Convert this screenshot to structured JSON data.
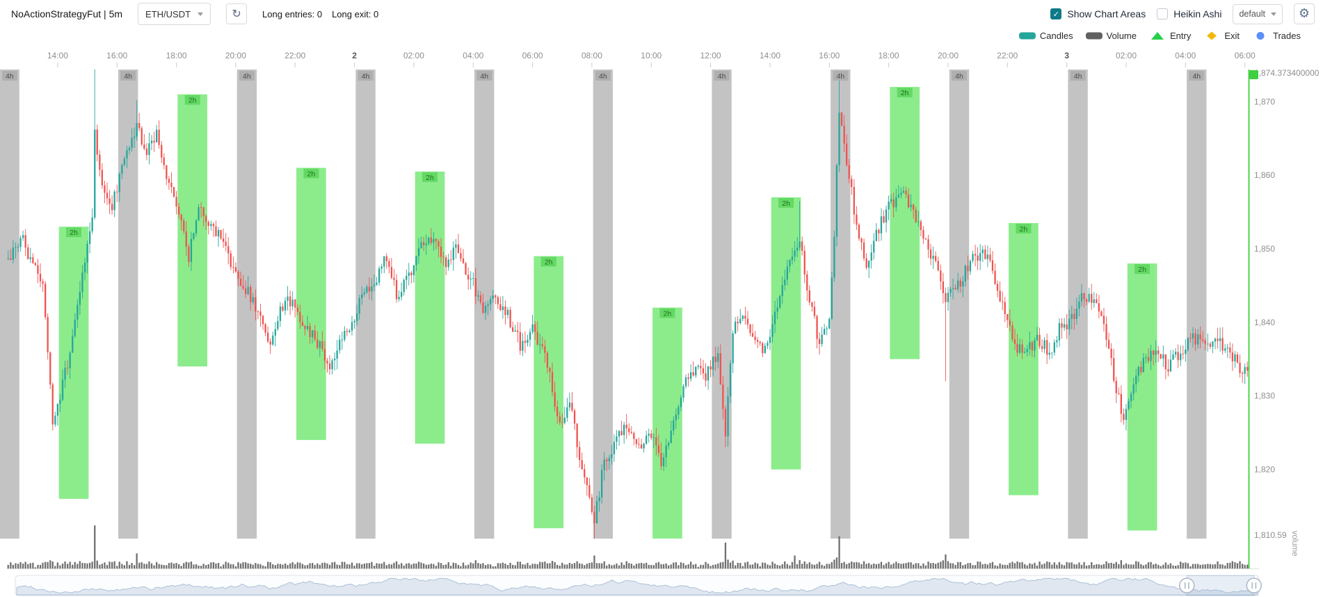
{
  "header": {
    "title": "NoActionStrategyFut | 5m",
    "pair_select": {
      "value": "ETH/USDT"
    },
    "long_entries_label": "Long entries: 0",
    "long_exit_label": "Long exit: 0",
    "show_chart_areas": {
      "label": "Show Chart Areas",
      "checked": true
    },
    "heikin_ashi": {
      "label": "Heikin Ashi",
      "checked": false
    },
    "theme_select": {
      "value": "default"
    }
  },
  "legend": {
    "items": [
      {
        "id": "candles",
        "label": "Candles",
        "marker": "pill",
        "color": "#26a69a"
      },
      {
        "id": "volume",
        "label": "Volume",
        "marker": "pill",
        "color": "#616161"
      },
      {
        "id": "entry",
        "label": "Entry",
        "marker": "triangle",
        "color": "#27d04c"
      },
      {
        "id": "exit",
        "label": "Exit",
        "marker": "diamond",
        "color": "#f0b90b"
      },
      {
        "id": "trades",
        "label": "Trades",
        "marker": "circle",
        "color": "#5b8ff9"
      }
    ]
  },
  "colors": {
    "up": "#26a69a",
    "down": "#ef5350",
    "volume_bar": "#6f6f6f",
    "area_4h": "#c3c3c3",
    "area_4h_badge": "#afafaf",
    "area_4h_text": "#4a4a4a",
    "area_2h": "#8cec8c",
    "area_2h_badge": "#63d963",
    "area_2h_text": "#1e6e1e",
    "axis_text": "#8e8e8e",
    "axis_day_text": "#555555",
    "last_price_line": "#3fcf3f"
  },
  "chart_data": {
    "type": "candlestick",
    "pair": "ETH/USDT",
    "timeframe": "5m",
    "candle_count": 502,
    "price_axis": {
      "max": 1874.3734,
      "min": 1810.59,
      "tick_prices": [
        1874.3734,
        1870,
        1860,
        1850,
        1840,
        1830,
        1820,
        1810.59
      ],
      "tick_labels": [
        "1,874.373400000",
        "1,870",
        "1,860",
        "1,850",
        "1,840",
        "1,830",
        "1,820",
        "1,810.59"
      ]
    },
    "time_axis": {
      "ticks": [
        {
          "label": "14:00",
          "index": 20
        },
        {
          "label": "16:00",
          "index": 44
        },
        {
          "label": "18:00",
          "index": 68
        },
        {
          "label": "20:00",
          "index": 92
        },
        {
          "label": "22:00",
          "index": 116
        },
        {
          "label": "2",
          "index": 140,
          "day": true
        },
        {
          "label": "02:00",
          "index": 164
        },
        {
          "label": "04:00",
          "index": 188
        },
        {
          "label": "06:00",
          "index": 212
        },
        {
          "label": "08:00",
          "index": 236
        },
        {
          "label": "10:00",
          "index": 260
        },
        {
          "label": "12:00",
          "index": 284
        },
        {
          "label": "14:00",
          "index": 308
        },
        {
          "label": "16:00",
          "index": 332
        },
        {
          "label": "18:00",
          "index": 356
        },
        {
          "label": "20:00",
          "index": 380
        },
        {
          "label": "22:00",
          "index": 404
        },
        {
          "label": "3",
          "index": 428,
          "day": true
        },
        {
          "label": "02:00",
          "index": 452
        },
        {
          "label": "04:00",
          "index": 476
        },
        {
          "label": "06:00",
          "index": 500
        }
      ]
    },
    "close_anchors": [
      [
        1,
        1849
      ],
      [
        6,
        1851
      ],
      [
        14,
        1845
      ],
      [
        18,
        1826
      ],
      [
        25,
        1836
      ],
      [
        30,
        1846
      ],
      [
        34,
        1854
      ],
      [
        35,
        1866
      ],
      [
        38,
        1859
      ],
      [
        42,
        1856
      ],
      [
        47,
        1862
      ],
      [
        52,
        1867
      ],
      [
        56,
        1863
      ],
      [
        60,
        1866
      ],
      [
        64,
        1860
      ],
      [
        69,
        1855
      ],
      [
        73,
        1849
      ],
      [
        77,
        1856
      ],
      [
        82,
        1853
      ],
      [
        87,
        1851
      ],
      [
        92,
        1846
      ],
      [
        97,
        1844
      ],
      [
        101,
        1841
      ],
      [
        106,
        1837
      ],
      [
        110,
        1842
      ],
      [
        115,
        1843
      ],
      [
        119,
        1840
      ],
      [
        124,
        1838
      ],
      [
        130,
        1834
      ],
      [
        134,
        1837
      ],
      [
        139,
        1840
      ],
      [
        144,
        1844
      ],
      [
        149,
        1846
      ],
      [
        153,
        1849
      ],
      [
        157,
        1844
      ],
      [
        162,
        1846
      ],
      [
        167,
        1850
      ],
      [
        172,
        1851
      ],
      [
        176,
        1848
      ],
      [
        181,
        1850
      ],
      [
        187,
        1846
      ],
      [
        192,
        1842
      ],
      [
        197,
        1843
      ],
      [
        202,
        1841
      ],
      [
        207,
        1837
      ],
      [
        212,
        1839
      ],
      [
        217,
        1836
      ],
      [
        221,
        1829
      ],
      [
        223,
        1826
      ],
      [
        227,
        1829
      ],
      [
        231,
        1822
      ],
      [
        234,
        1817
      ],
      [
        237,
        1813
      ],
      [
        241,
        1821
      ],
      [
        246,
        1824
      ],
      [
        250,
        1826
      ],
      [
        255,
        1823
      ],
      [
        259,
        1825
      ],
      [
        264,
        1821
      ],
      [
        269,
        1826
      ],
      [
        273,
        1831
      ],
      [
        278,
        1834
      ],
      [
        282,
        1833
      ],
      [
        287,
        1836
      ],
      [
        290,
        1825
      ],
      [
        293,
        1839
      ],
      [
        297,
        1841
      ],
      [
        302,
        1838
      ],
      [
        306,
        1836
      ],
      [
        311,
        1842
      ],
      [
        315,
        1847
      ],
      [
        320,
        1851
      ],
      [
        324,
        1843
      ],
      [
        328,
        1837
      ],
      [
        332,
        1840
      ],
      [
        334,
        1852
      ],
      [
        336,
        1869
      ],
      [
        339,
        1862
      ],
      [
        343,
        1853
      ],
      [
        347,
        1847
      ],
      [
        351,
        1852
      ],
      [
        356,
        1856
      ],
      [
        362,
        1857
      ],
      [
        366,
        1855
      ],
      [
        371,
        1851
      ],
      [
        375,
        1848
      ],
      [
        379,
        1843
      ],
      [
        384,
        1845
      ],
      [
        389,
        1848
      ],
      [
        394,
        1850
      ],
      [
        398,
        1847
      ],
      [
        403,
        1841
      ],
      [
        407,
        1837
      ],
      [
        412,
        1836
      ],
      [
        416,
        1838
      ],
      [
        421,
        1836
      ],
      [
        425,
        1839
      ],
      [
        431,
        1841
      ],
      [
        435,
        1844
      ],
      [
        440,
        1842
      ],
      [
        444,
        1838
      ],
      [
        448,
        1831
      ],
      [
        451,
        1827
      ],
      [
        455,
        1832
      ],
      [
        460,
        1835
      ],
      [
        465,
        1836
      ],
      [
        469,
        1834
      ],
      [
        474,
        1836
      ],
      [
        478,
        1838
      ],
      [
        483,
        1837
      ],
      [
        488,
        1838
      ],
      [
        494,
        1836
      ],
      [
        498,
        1834
      ],
      [
        501,
        1833
      ]
    ],
    "wick_overrides": [
      {
        "i": 35,
        "high": 1874.3734
      },
      {
        "i": 52,
        "high": 1870.2
      },
      {
        "i": 237,
        "low": 1810.59
      },
      {
        "i": 290,
        "low": 1823
      },
      {
        "i": 320,
        "high": 1856.5
      },
      {
        "i": 336,
        "high": 1873.2
      },
      {
        "i": 379,
        "low": 1832
      }
    ],
    "volume_spikes": [
      {
        "i": 35,
        "v": 1.0
      },
      {
        "i": 52,
        "v": 0.35
      },
      {
        "i": 237,
        "v": 0.3
      },
      {
        "i": 290,
        "v": 0.6
      },
      {
        "i": 318,
        "v": 0.3
      },
      {
        "i": 336,
        "v": 0.75
      }
    ],
    "areas_4h": {
      "label": "4h",
      "starts": [
        -3,
        45,
        93,
        141,
        189,
        237,
        285,
        333,
        381,
        429,
        477
      ],
      "width": 8
    },
    "areas_2h": {
      "label": "2h",
      "boxes": [
        {
          "start": 21,
          "end": 33,
          "low": 1816,
          "high": 1853
        },
        {
          "start": 69,
          "end": 81,
          "low": 1834,
          "high": 1871
        },
        {
          "start": 117,
          "end": 129,
          "low": 1824,
          "high": 1861
        },
        {
          "start": 165,
          "end": 177,
          "low": 1823.5,
          "high": 1860.5
        },
        {
          "start": 213,
          "end": 225,
          "low": 1812,
          "high": 1849
        },
        {
          "start": 261,
          "end": 273,
          "low": 1810.6,
          "high": 1842
        },
        {
          "start": 309,
          "end": 321,
          "low": 1820,
          "high": 1857
        },
        {
          "start": 357,
          "end": 369,
          "low": 1835,
          "high": 1872
        },
        {
          "start": 405,
          "end": 417,
          "low": 1816.5,
          "high": 1853.5
        },
        {
          "start": 453,
          "end": 465,
          "low": 1811.7,
          "high": 1848
        }
      ]
    },
    "volume_axis_label": "volume",
    "navigator": {
      "window_start_pct": 94.2,
      "window_end_pct": 99.6
    }
  }
}
